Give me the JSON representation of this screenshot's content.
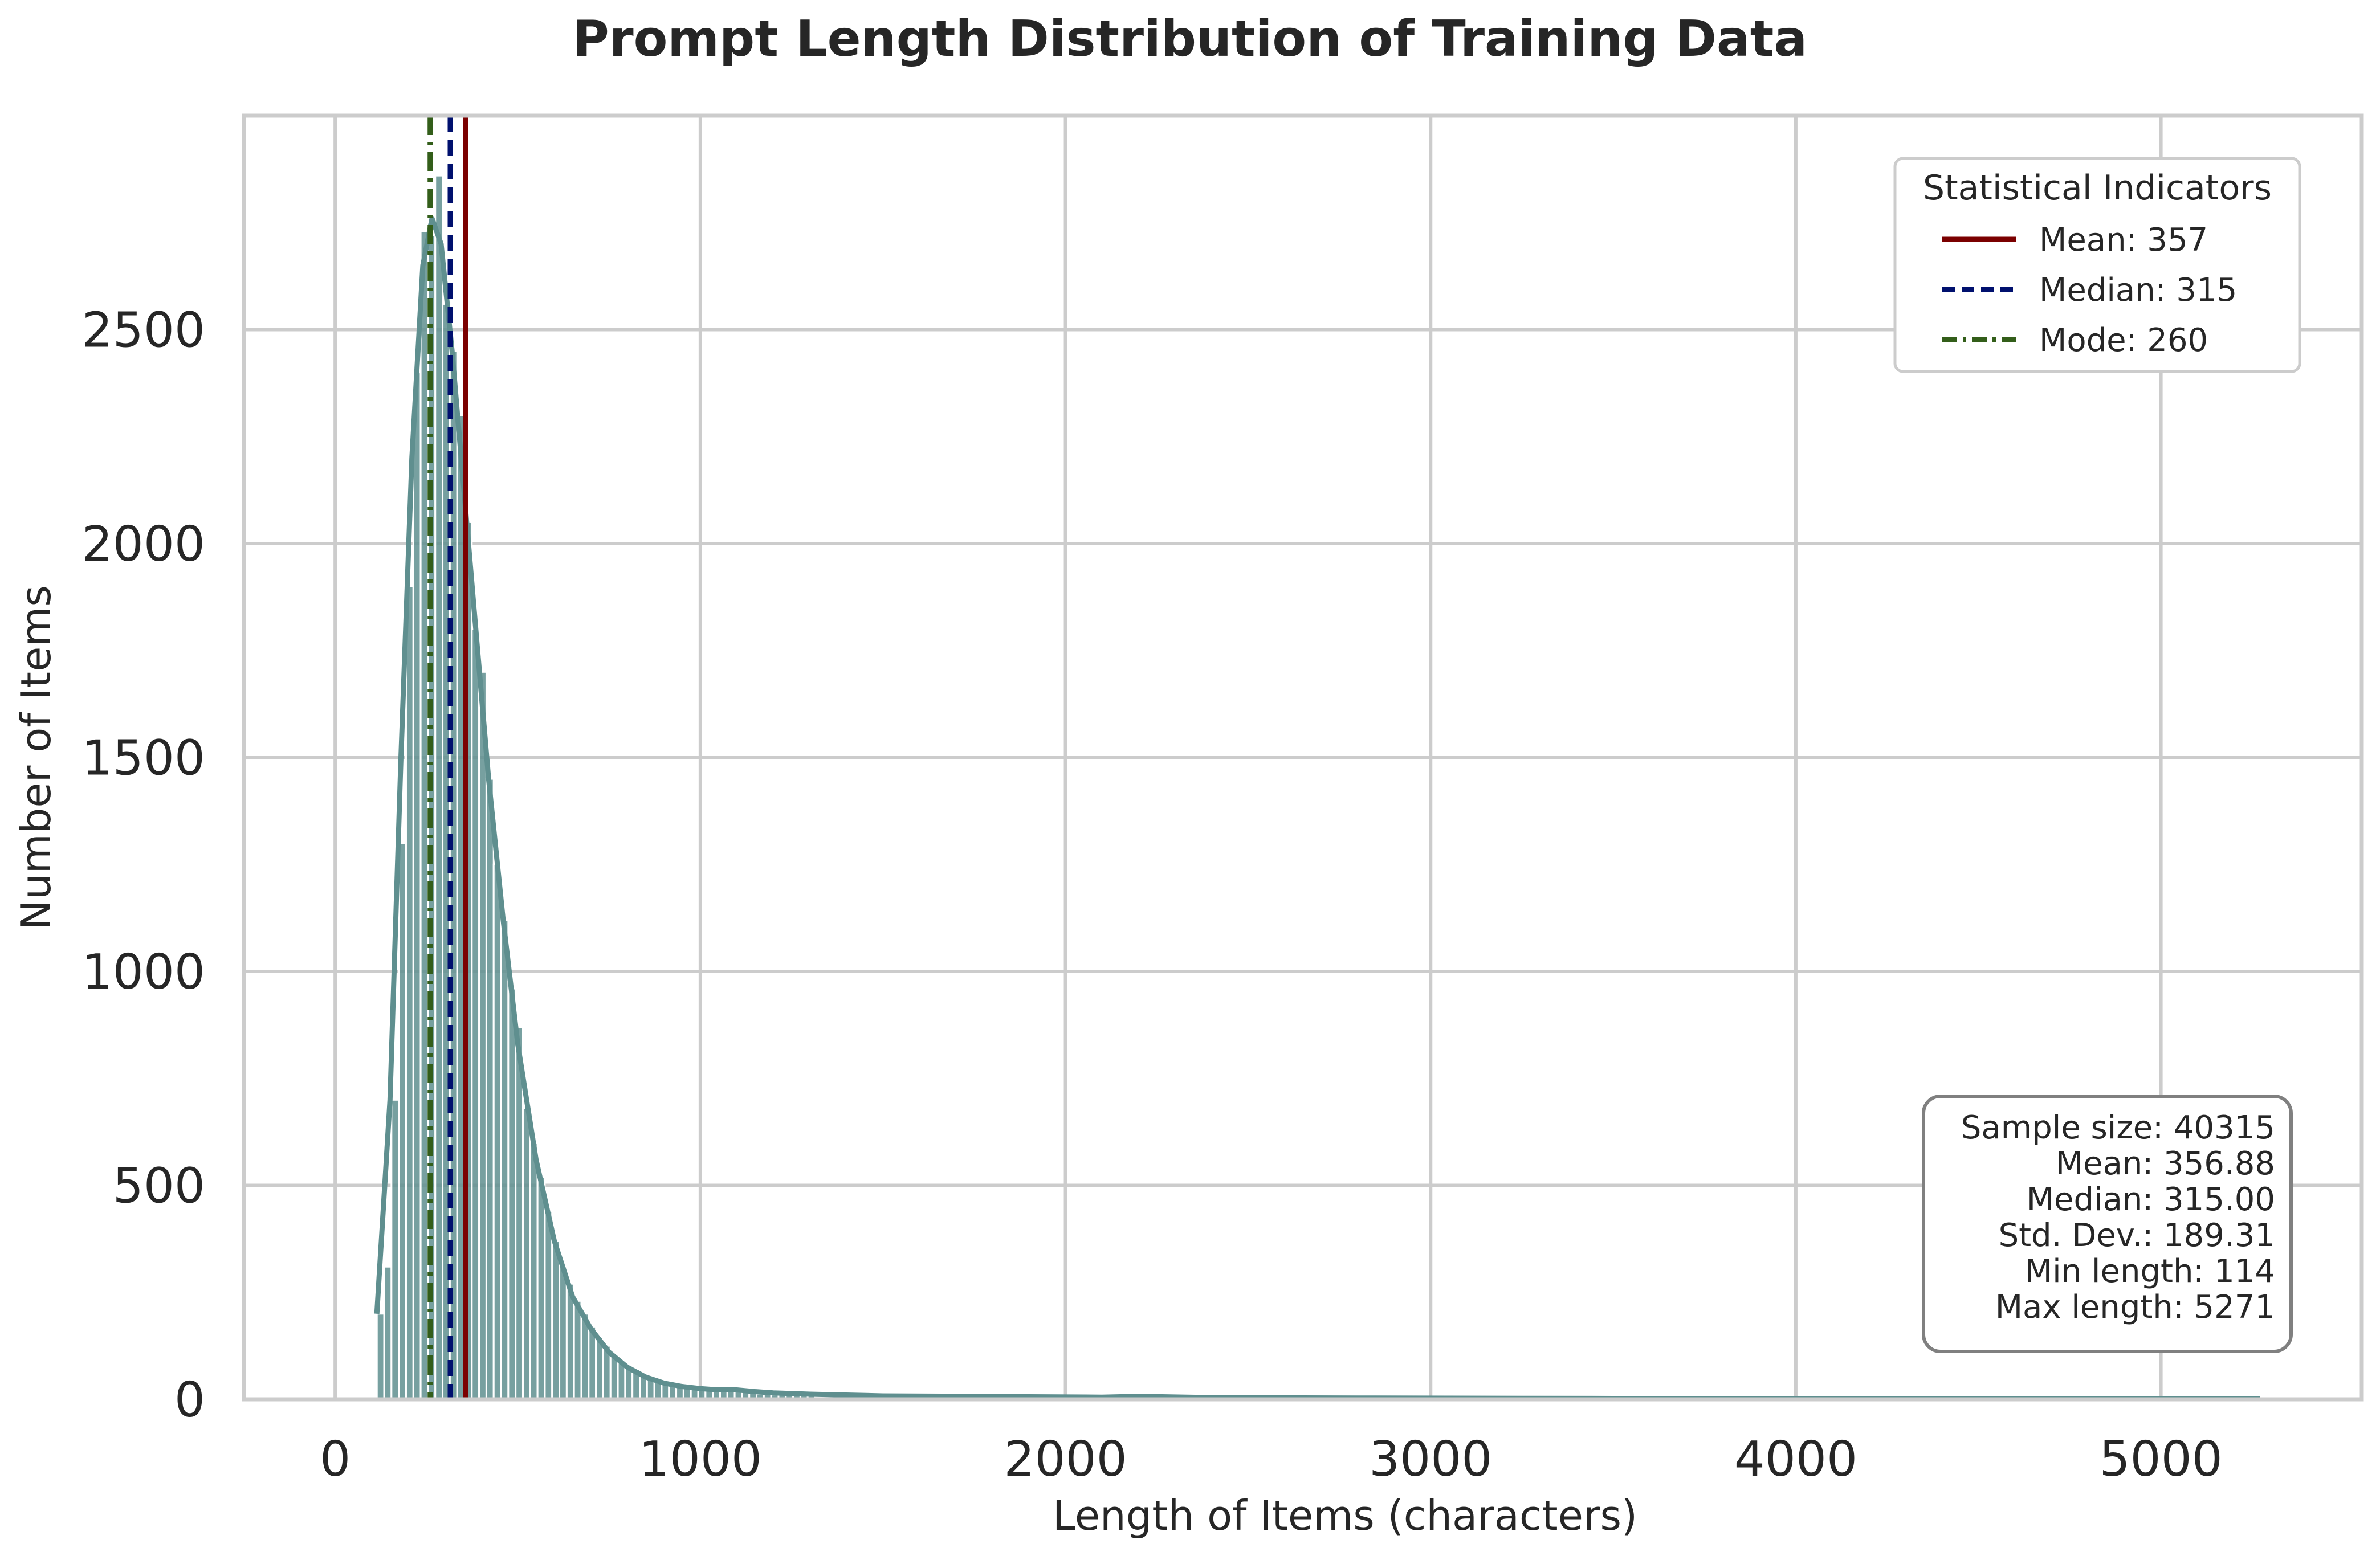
{
  "chart_data": {
    "type": "bar",
    "title": "Prompt Length Distribution of Training Data",
    "xlabel": "Length of Items (characters)",
    "ylabel": "Number of Items",
    "xlim": [
      -250,
      5550
    ],
    "ylim": [
      0,
      3000
    ],
    "xticks": [
      0,
      1000,
      2000,
      3000,
      4000,
      5000
    ],
    "yticks": [
      0,
      500,
      1000,
      1500,
      2000,
      2500
    ],
    "grid": true,
    "bar_color": "#5f8f8f",
    "kde_color": "#5f8f8f",
    "bin_width": 20,
    "bins": [
      {
        "x": 114,
        "y": 200
      },
      {
        "x": 134,
        "y": 310
      },
      {
        "x": 154,
        "y": 700
      },
      {
        "x": 174,
        "y": 1300
      },
      {
        "x": 194,
        "y": 1900
      },
      {
        "x": 214,
        "y": 2400
      },
      {
        "x": 234,
        "y": 2730
      },
      {
        "x": 254,
        "y": 2720
      },
      {
        "x": 274,
        "y": 2860
      },
      {
        "x": 294,
        "y": 2560
      },
      {
        "x": 314,
        "y": 2450
      },
      {
        "x": 334,
        "y": 2300
      },
      {
        "x": 354,
        "y": 2050
      },
      {
        "x": 374,
        "y": 1800
      },
      {
        "x": 394,
        "y": 1700
      },
      {
        "x": 414,
        "y": 1450
      },
      {
        "x": 434,
        "y": 1250
      },
      {
        "x": 454,
        "y": 1120
      },
      {
        "x": 474,
        "y": 960
      },
      {
        "x": 494,
        "y": 870
      },
      {
        "x": 514,
        "y": 680
      },
      {
        "x": 534,
        "y": 600
      },
      {
        "x": 554,
        "y": 520
      },
      {
        "x": 574,
        "y": 440
      },
      {
        "x": 594,
        "y": 370
      },
      {
        "x": 614,
        "y": 310
      },
      {
        "x": 634,
        "y": 270
      },
      {
        "x": 654,
        "y": 230
      },
      {
        "x": 674,
        "y": 200
      },
      {
        "x": 694,
        "y": 170
      },
      {
        "x": 714,
        "y": 145
      },
      {
        "x": 734,
        "y": 125
      },
      {
        "x": 754,
        "y": 105
      },
      {
        "x": 774,
        "y": 90
      },
      {
        "x": 794,
        "y": 80
      },
      {
        "x": 814,
        "y": 70
      },
      {
        "x": 834,
        "y": 60
      },
      {
        "x": 854,
        "y": 52
      },
      {
        "x": 874,
        "y": 45
      },
      {
        "x": 894,
        "y": 40
      },
      {
        "x": 914,
        "y": 35
      },
      {
        "x": 934,
        "y": 31
      },
      {
        "x": 954,
        "y": 28
      },
      {
        "x": 974,
        "y": 26
      },
      {
        "x": 994,
        "y": 24
      },
      {
        "x": 1014,
        "y": 22
      },
      {
        "x": 1034,
        "y": 20
      },
      {
        "x": 1054,
        "y": 20
      },
      {
        "x": 1074,
        "y": 18
      },
      {
        "x": 1094,
        "y": 24
      },
      {
        "x": 1114,
        "y": 20
      },
      {
        "x": 1134,
        "y": 15
      },
      {
        "x": 1154,
        "y": 13
      },
      {
        "x": 1174,
        "y": 12
      },
      {
        "x": 1194,
        "y": 11
      },
      {
        "x": 1214,
        "y": 14
      },
      {
        "x": 1234,
        "y": 10
      },
      {
        "x": 1254,
        "y": 9
      },
      {
        "x": 1274,
        "y": 9
      },
      {
        "x": 1294,
        "y": 8
      }
    ],
    "kde": [
      {
        "x": 114,
        "y": 200
      },
      {
        "x": 150,
        "y": 700
      },
      {
        "x": 180,
        "y": 1500
      },
      {
        "x": 210,
        "y": 2200
      },
      {
        "x": 240,
        "y": 2650
      },
      {
        "x": 265,
        "y": 2760
      },
      {
        "x": 290,
        "y": 2700
      },
      {
        "x": 320,
        "y": 2450
      },
      {
        "x": 350,
        "y": 2150
      },
      {
        "x": 380,
        "y": 1850
      },
      {
        "x": 420,
        "y": 1450
      },
      {
        "x": 460,
        "y": 1120
      },
      {
        "x": 500,
        "y": 830
      },
      {
        "x": 550,
        "y": 560
      },
      {
        "x": 600,
        "y": 370
      },
      {
        "x": 650,
        "y": 240
      },
      {
        "x": 700,
        "y": 165
      },
      {
        "x": 750,
        "y": 110
      },
      {
        "x": 800,
        "y": 75
      },
      {
        "x": 850,
        "y": 52
      },
      {
        "x": 900,
        "y": 38
      },
      {
        "x": 950,
        "y": 30
      },
      {
        "x": 1000,
        "y": 25
      },
      {
        "x": 1050,
        "y": 22
      },
      {
        "x": 1100,
        "y": 22
      },
      {
        "x": 1150,
        "y": 18
      },
      {
        "x": 1200,
        "y": 15
      },
      {
        "x": 1300,
        "y": 12
      },
      {
        "x": 1400,
        "y": 10
      },
      {
        "x": 1500,
        "y": 8
      },
      {
        "x": 1700,
        "y": 7
      },
      {
        "x": 1900,
        "y": 6
      },
      {
        "x": 2100,
        "y": 5
      },
      {
        "x": 2200,
        "y": 7
      },
      {
        "x": 2400,
        "y": 4
      },
      {
        "x": 2800,
        "y": 3
      },
      {
        "x": 3500,
        "y": 2
      },
      {
        "x": 4200,
        "y": 2
      },
      {
        "x": 4800,
        "y": 2
      },
      {
        "x": 5271,
        "y": 2
      }
    ],
    "stat_lines": [
      {
        "label": "Mean: 357",
        "x": 357,
        "color": "#7b0000",
        "style": "solid"
      },
      {
        "label": "Median: 315",
        "x": 315,
        "color": "#00106e",
        "style": "dashed"
      },
      {
        "label": "Mode: 260",
        "x": 260,
        "color": "#335e1a",
        "style": "dashdot"
      }
    ],
    "legend": {
      "title": "Statistical Indicators",
      "placement": "top-right"
    },
    "stats_box": {
      "placement": "bottom-right",
      "lines": [
        "Sample size: 40315",
        "Mean: 356.88",
        "Median: 315.00",
        "Std. Dev.: 189.31",
        "Min length: 114",
        "Max length: 5271"
      ]
    }
  }
}
